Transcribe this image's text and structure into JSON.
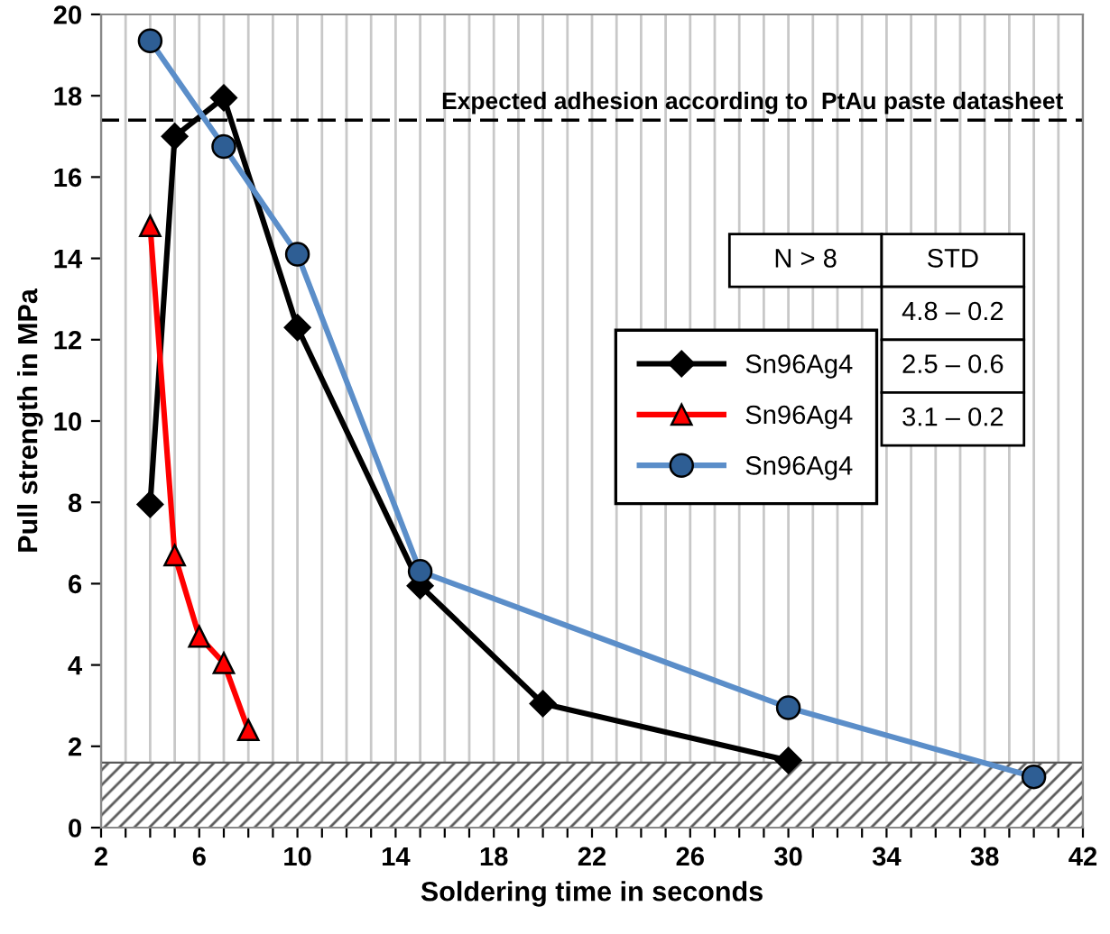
{
  "chart_data": {
    "type": "line",
    "xlabel": "Soldering time in seconds",
    "ylabel": "Pull strength in MPa",
    "xlim": [
      2,
      42
    ],
    "ylim": [
      0,
      20
    ],
    "xticks": [
      2,
      {
        "value": 3,
        "label": null
      },
      {
        "value": 4,
        "label": null
      },
      {
        "value": 5,
        "label": null
      },
      6,
      {
        "value": 7,
        "label": null
      },
      {
        "value": 8,
        "label": null
      },
      {
        "value": 9,
        "label": null
      },
      10,
      {
        "value": 11,
        "label": null
      },
      {
        "value": 12,
        "label": null
      },
      {
        "value": 13,
        "label": null
      },
      14,
      {
        "value": 15,
        "label": null
      },
      {
        "value": 16,
        "label": null
      },
      {
        "value": 17,
        "label": null
      },
      18,
      {
        "value": 19,
        "label": null
      },
      {
        "value": 20,
        "label": null
      },
      {
        "value": 21,
        "label": null
      },
      22,
      {
        "value": 23,
        "label": null
      },
      {
        "value": 24,
        "label": null
      },
      {
        "value": 25,
        "label": null
      },
      26,
      {
        "value": 27,
        "label": null
      },
      {
        "value": 28,
        "label": null
      },
      {
        "value": 29,
        "label": null
      },
      30,
      {
        "value": 31,
        "label": null
      },
      {
        "value": 32,
        "label": null
      },
      {
        "value": 33,
        "label": null
      },
      34,
      {
        "value": 35,
        "label": null
      },
      {
        "value": 36,
        "label": null
      },
      {
        "value": 37,
        "label": null
      },
      38,
      {
        "value": 39,
        "label": null
      },
      {
        "value": 40,
        "label": null
      },
      {
        "value": 41,
        "label": null
      },
      42
    ],
    "yticks": [
      0,
      2,
      4,
      6,
      8,
      10,
      12,
      14,
      16,
      18,
      20
    ],
    "grid": "x",
    "legend": "right",
    "series": [
      {
        "name": "Sn96Ag4",
        "color": "#000000",
        "marker": "diamond",
        "x": [
          4,
          5,
          7,
          10,
          15,
          20,
          30
        ],
        "values": [
          7.95,
          17.0,
          17.95,
          12.3,
          5.95,
          3.05,
          1.65
        ]
      },
      {
        "name": "Sn96Ag4",
        "color": "#ff0000",
        "marker": "triangle",
        "x": [
          4,
          5,
          6,
          7,
          8
        ],
        "values": [
          14.8,
          6.7,
          4.7,
          4.05,
          2.4
        ]
      },
      {
        "name": "Sn96Ag4",
        "color": "#5b8ec9",
        "marker": "circle",
        "x": [
          4,
          7,
          10,
          15,
          30,
          40
        ],
        "values": [
          19.35,
          16.75,
          14.1,
          6.3,
          2.95,
          1.25
        ]
      }
    ],
    "ref_lines": [
      {
        "axis": "y",
        "value": 17.4,
        "label": "Expected adhesion according to  PtAu paste datasheet",
        "color": "#000000",
        "line_style": "dashed"
      }
    ],
    "bands": [
      {
        "axis": "y",
        "from": 0,
        "to": 1.6,
        "color": "#595959"
      }
    ],
    "annotations": [
      "N > 8",
      "STD",
      "4.8 – 0.2",
      "2.5 – 0.6",
      "3.1 – 0.2"
    ]
  }
}
